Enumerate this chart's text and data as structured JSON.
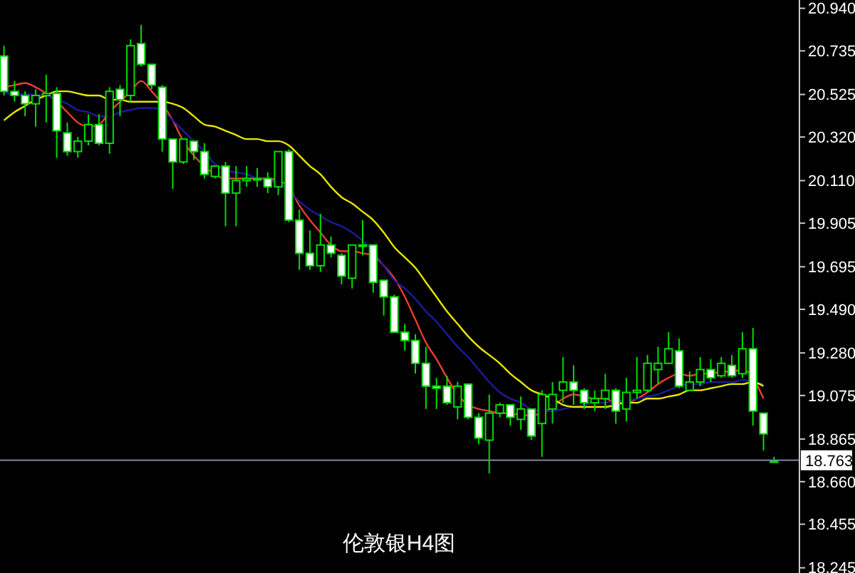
{
  "chart_data": {
    "type": "candlestick",
    "title": "伦敦银H4图",
    "categories": [
      null,
      null,
      null,
      null,
      null,
      null,
      null,
      null,
      null,
      null,
      null,
      null,
      null,
      null,
      null,
      null,
      null,
      null,
      null,
      null,
      null,
      null,
      null,
      null,
      null,
      null,
      null,
      null,
      null,
      null,
      null,
      null,
      null,
      null,
      null,
      null,
      null,
      null,
      null,
      null,
      null,
      null,
      null,
      null,
      null,
      null,
      null,
      null,
      null,
      null,
      null,
      null,
      null,
      null,
      null,
      null,
      null,
      null,
      null,
      null,
      null,
      null,
      null,
      null,
      null,
      null,
      null,
      null,
      null,
      null,
      null,
      null,
      null,
      null
    ],
    "ohlc": [
      [
        20.71,
        20.76,
        20.52,
        20.54
      ],
      [
        20.54,
        20.59,
        20.49,
        20.52
      ],
      [
        20.52,
        20.54,
        20.42,
        20.48
      ],
      [
        20.48,
        20.55,
        20.37,
        20.52
      ],
      [
        20.52,
        20.62,
        20.39,
        20.53
      ],
      [
        20.53,
        20.56,
        20.22,
        20.35
      ],
      [
        20.34,
        20.39,
        20.23,
        20.25
      ],
      [
        20.25,
        20.32,
        20.22,
        20.3
      ],
      [
        20.3,
        20.43,
        20.28,
        20.38
      ],
      [
        20.38,
        20.43,
        20.28,
        20.29
      ],
      [
        20.29,
        20.56,
        20.24,
        20.54
      ],
      [
        20.55,
        20.57,
        20.42,
        20.5
      ],
      [
        20.52,
        20.79,
        20.49,
        20.76
      ],
      [
        20.77,
        20.86,
        20.66,
        20.67
      ],
      [
        20.67,
        20.67,
        20.55,
        20.57
      ],
      [
        20.56,
        20.57,
        20.25,
        20.31
      ],
      [
        20.31,
        20.31,
        20.07,
        20.2
      ],
      [
        20.2,
        20.31,
        20.19,
        20.31
      ],
      [
        20.3,
        20.3,
        20.21,
        20.25
      ],
      [
        20.25,
        20.29,
        20.12,
        20.14
      ],
      [
        20.13,
        20.18,
        20.12,
        20.18
      ],
      [
        20.18,
        20.2,
        19.89,
        20.05
      ],
      [
        20.05,
        20.18,
        19.89,
        20.11
      ],
      [
        20.11,
        20.18,
        20.08,
        20.12
      ],
      [
        20.12,
        20.17,
        20.08,
        20.12
      ],
      [
        20.12,
        20.15,
        20.05,
        20.08
      ],
      [
        20.08,
        20.25,
        20.04,
        20.25
      ],
      [
        20.25,
        20.26,
        19.91,
        19.92
      ],
      [
        19.92,
        19.97,
        19.68,
        19.76
      ],
      [
        19.76,
        19.87,
        19.68,
        19.7
      ],
      [
        19.7,
        19.95,
        19.67,
        19.8
      ],
      [
        19.8,
        19.84,
        19.74,
        19.76
      ],
      [
        19.75,
        19.76,
        19.61,
        19.65
      ],
      [
        19.64,
        19.8,
        19.59,
        19.8
      ],
      [
        19.8,
        19.92,
        19.75,
        19.8
      ],
      [
        19.8,
        19.8,
        19.57,
        19.62
      ],
      [
        19.63,
        19.63,
        19.46,
        19.55
      ],
      [
        19.55,
        19.56,
        19.38,
        19.38
      ],
      [
        19.38,
        19.42,
        19.29,
        19.34
      ],
      [
        19.34,
        19.37,
        19.18,
        19.23
      ],
      [
        19.23,
        19.31,
        19.01,
        19.12
      ],
      [
        19.12,
        19.16,
        19.01,
        19.11
      ],
      [
        19.12,
        19.17,
        19.03,
        19.04
      ],
      [
        19.02,
        19.14,
        18.96,
        19.12
      ],
      [
        19.13,
        19.13,
        18.96,
        18.97
      ],
      [
        18.97,
        18.99,
        18.84,
        18.87
      ],
      [
        18.86,
        19.08,
        18.7,
        18.99
      ],
      [
        18.99,
        19.04,
        18.97,
        19.03
      ],
      [
        19.03,
        19.03,
        18.93,
        18.97
      ],
      [
        18.96,
        19.07,
        18.91,
        19.01
      ],
      [
        19.01,
        19.01,
        18.86,
        18.88
      ],
      [
        18.94,
        19.1,
        18.78,
        19.08
      ],
      [
        19.01,
        19.14,
        18.94,
        19.08
      ],
      [
        19.1,
        19.26,
        19.04,
        19.14
      ],
      [
        19.14,
        19.22,
        19.03,
        19.1
      ],
      [
        19.1,
        19.11,
        19.01,
        19.04
      ],
      [
        19.04,
        19.1,
        19.0,
        19.06
      ],
      [
        19.06,
        19.18,
        19.01,
        19.1
      ],
      [
        19.1,
        19.11,
        18.94,
        19.0
      ],
      [
        19.01,
        19.16,
        18.95,
        19.09
      ],
      [
        19.09,
        19.26,
        19.06,
        19.1
      ],
      [
        19.1,
        19.27,
        19.09,
        19.23
      ],
      [
        19.2,
        19.31,
        19.13,
        19.23
      ],
      [
        19.23,
        19.38,
        19.23,
        19.3
      ],
      [
        19.29,
        19.35,
        19.11,
        19.12
      ],
      [
        19.1,
        19.19,
        19.1,
        19.14
      ],
      [
        19.14,
        19.26,
        19.12,
        19.2
      ],
      [
        19.2,
        19.25,
        19.14,
        19.16
      ],
      [
        19.17,
        19.26,
        19.16,
        19.23
      ],
      [
        19.22,
        19.27,
        19.16,
        19.17
      ],
      [
        19.18,
        19.38,
        19.16,
        19.3
      ],
      [
        19.3,
        19.4,
        18.93,
        19.0
      ],
      [
        18.99,
        18.99,
        18.81,
        18.89
      ],
      [
        18.76,
        18.78,
        18.76,
        18.76
      ]
    ],
    "series": [
      {
        "type": "line",
        "color": "#e8402a",
        "values": [
          20.56,
          20.57,
          20.58,
          20.56,
          20.53,
          20.49,
          20.44,
          20.39,
          20.37,
          20.38,
          20.44,
          20.49,
          20.54,
          20.59,
          20.54,
          20.48,
          20.4,
          20.3,
          20.23,
          20.18,
          20.14,
          20.12,
          20.12,
          20.12,
          20.12,
          20.12,
          20.11,
          20.08,
          19.99,
          19.92,
          19.86,
          19.8,
          19.77,
          19.77,
          19.76,
          19.75,
          19.7,
          19.64,
          19.55,
          19.44,
          19.33,
          19.25,
          19.16,
          19.08,
          19.03,
          19.01,
          19.0,
          18.99,
          18.99,
          18.98,
          18.98,
          18.99,
          19.02,
          19.06,
          19.08,
          19.07,
          19.06,
          19.06,
          19.04,
          19.04,
          19.06,
          19.09,
          19.13,
          19.16,
          19.18,
          19.17,
          19.18,
          19.18,
          19.19,
          19.19,
          19.2,
          19.16,
          19.06,
          null
        ]
      },
      {
        "type": "line",
        "color": "#1c1c9c",
        "values": [
          20.54,
          20.52,
          20.53,
          20.52,
          20.52,
          20.5,
          20.48,
          20.45,
          20.44,
          20.42,
          20.42,
          20.44,
          20.45,
          20.46,
          20.46,
          20.45,
          20.4,
          20.35,
          20.3,
          20.25,
          20.19,
          20.16,
          20.15,
          20.14,
          20.12,
          20.11,
          20.1,
          20.06,
          20.01,
          19.97,
          19.94,
          19.91,
          19.89,
          19.86,
          19.82,
          19.77,
          19.7,
          19.63,
          19.59,
          19.54,
          19.48,
          19.43,
          19.37,
          19.31,
          19.26,
          19.2,
          19.14,
          19.09,
          19.06,
          19.04,
          19.01,
          19.0,
          19.0,
          19.01,
          19.02,
          19.03,
          19.04,
          19.04,
          19.05,
          19.05,
          19.06,
          19.07,
          19.08,
          19.1,
          19.12,
          19.13,
          19.13,
          19.14,
          19.14,
          19.14,
          19.15,
          19.14,
          19.13,
          null
        ]
      },
      {
        "type": "line",
        "color": "#e6e600",
        "values": [
          20.4,
          20.44,
          20.47,
          20.5,
          20.52,
          20.54,
          20.54,
          20.53,
          20.52,
          20.52,
          20.5,
          20.5,
          20.49,
          20.49,
          20.49,
          20.49,
          20.48,
          20.46,
          20.42,
          20.38,
          20.37,
          20.35,
          20.33,
          20.31,
          20.31,
          20.3,
          20.3,
          20.28,
          20.23,
          20.18,
          20.14,
          20.08,
          20.03,
          20.0,
          19.96,
          19.92,
          19.86,
          19.79,
          19.74,
          19.69,
          19.62,
          19.55,
          19.48,
          19.42,
          19.36,
          19.31,
          19.27,
          19.23,
          19.18,
          19.14,
          19.1,
          19.08,
          19.06,
          19.03,
          19.02,
          19.02,
          19.02,
          19.02,
          19.03,
          19.04,
          19.04,
          19.06,
          19.06,
          19.07,
          19.08,
          19.1,
          19.1,
          19.11,
          19.12,
          19.13,
          19.13,
          19.14,
          19.12,
          null
        ]
      }
    ],
    "ylim": [
      18.22,
      20.98
    ],
    "yticks": [
      {
        "value": 20.94,
        "label": "20.940"
      },
      20.735,
      20.525,
      {
        "value": 20.32,
        "label": "20.320"
      },
      {
        "value": 20.11,
        "label": "20.110"
      },
      19.905,
      19.695,
      {
        "value": 19.49,
        "label": "19.490"
      },
      {
        "value": 19.28,
        "label": "19.280"
      },
      19.075,
      18.865,
      {
        "value": 18.66,
        "label": "18.660"
      },
      18.455,
      18.245
    ],
    "ref_lines": [
      {
        "axis": "y",
        "value": 18.763,
        "label": "18.763",
        "color": "#7a8896"
      }
    ],
    "grid": false
  }
}
